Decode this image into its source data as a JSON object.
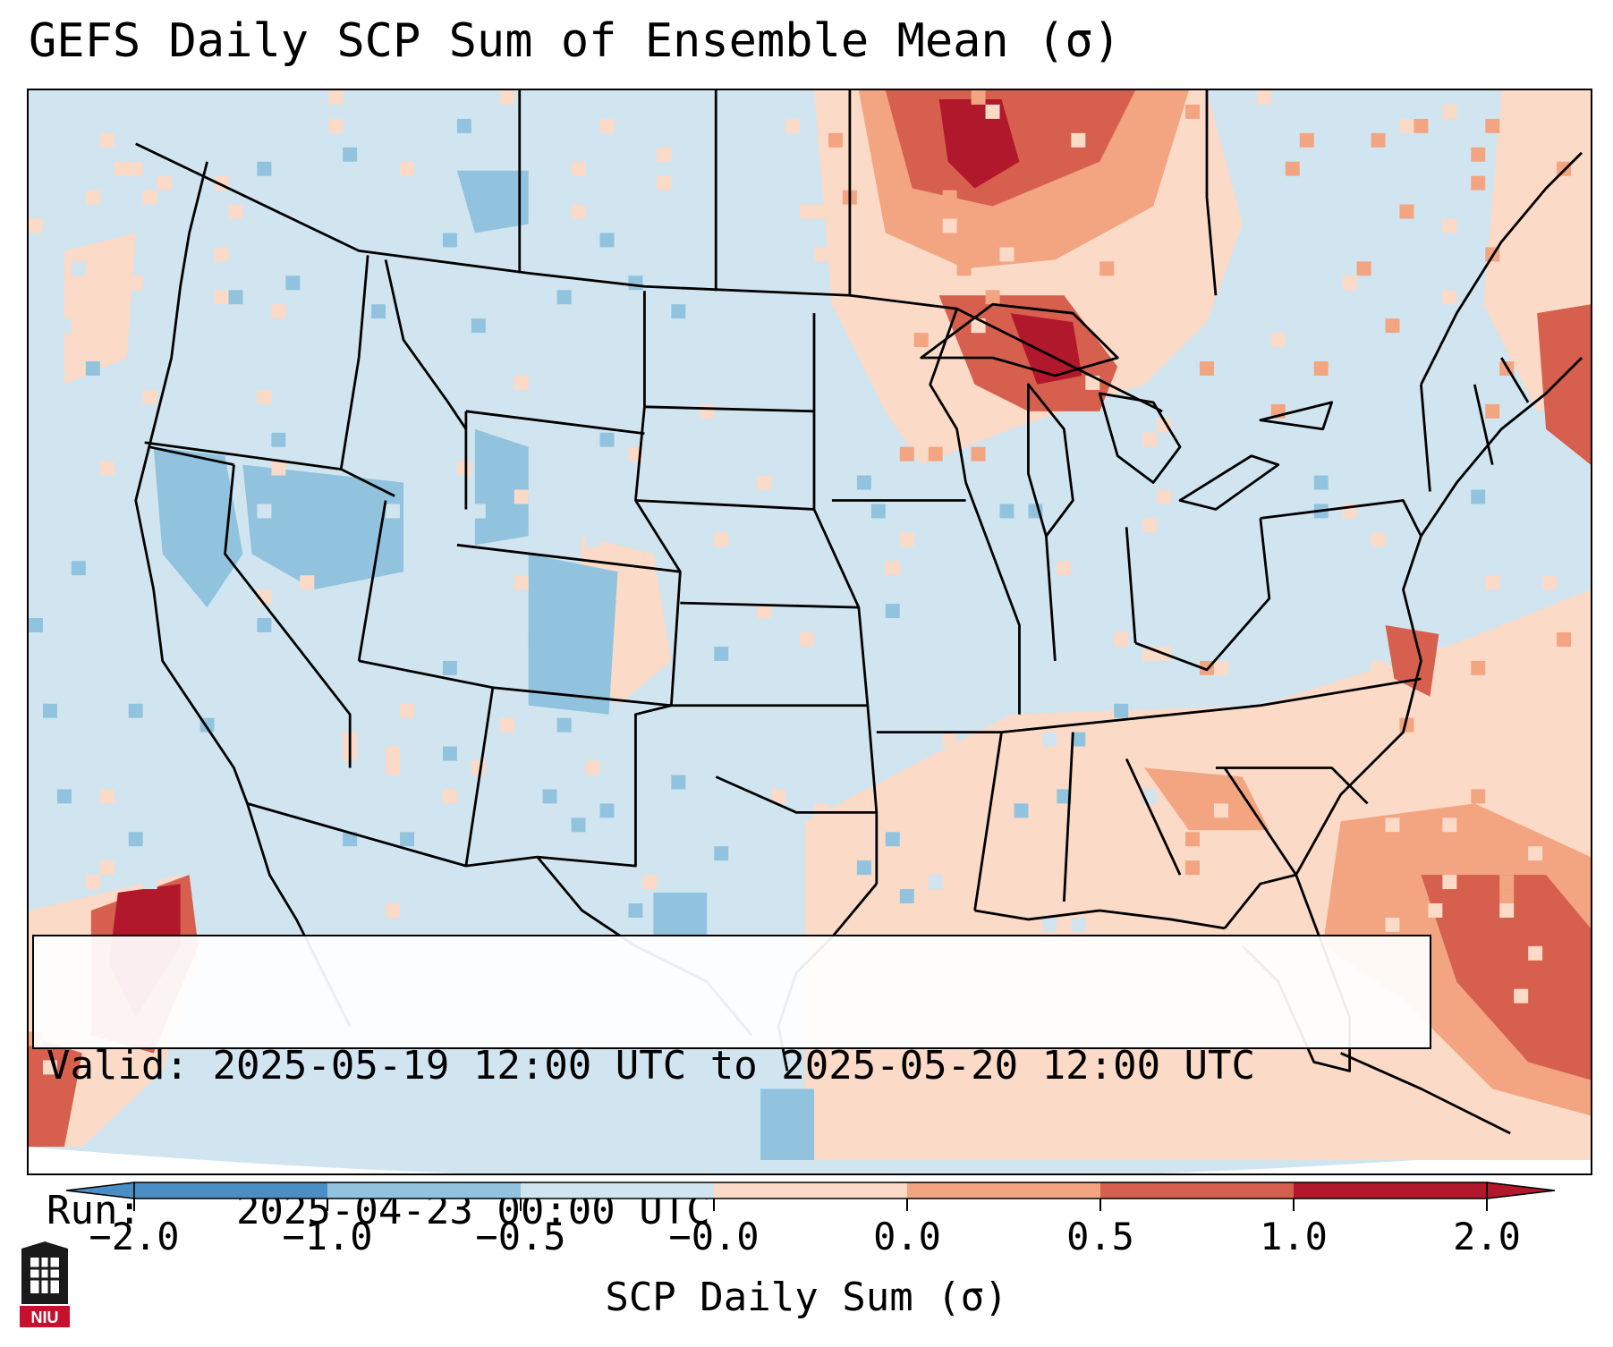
{
  "title": "GEFS Daily SCP Sum of Ensemble Mean (σ)",
  "info": {
    "valid_label": "Valid:",
    "valid_value": "2025-05-19 12:00 UTC to 2025-05-20 12:00 UTC",
    "run_label": "Run:",
    "run_value": "2025-04-23 00:00 UTC"
  },
  "colorbar": {
    "label": "SCP Daily Sum (σ)",
    "ticks": [
      "−2.0",
      "−1.0",
      "−0.5",
      "−0.0",
      "0.0",
      "0.5",
      "1.0",
      "2.0"
    ],
    "colors": [
      "#4a8ec4",
      "#91c3de",
      "#d1e5f0",
      "#fbdac7",
      "#f3a481",
      "#d6604d",
      "#b2182b"
    ],
    "extend": "both"
  },
  "legend_colors": {
    "below_-1": "#4a8ec4",
    "-1_to_-0.5": "#91c3de",
    "-0.5_to_0": "#d1e5f0",
    "0_to_0.5": "#fbdac7",
    "0.5_to_1": "#f3a481",
    "1_to_2": "#d6604d",
    "above_2": "#b2182b"
  },
  "logo": {
    "text": "NIU"
  }
}
